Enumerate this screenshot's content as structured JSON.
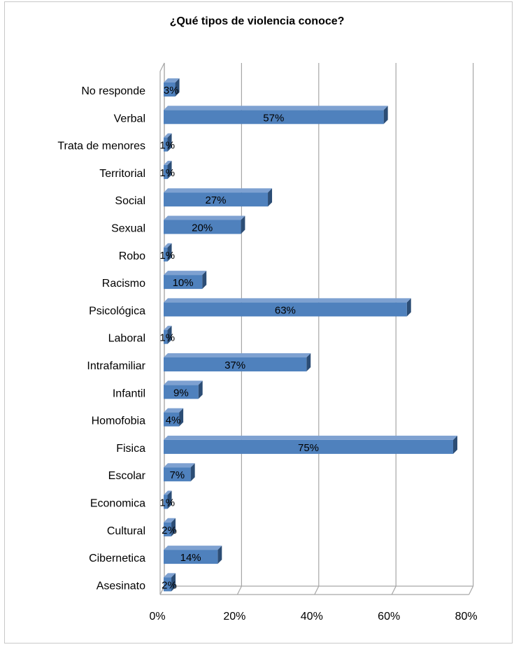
{
  "chart_data": {
    "type": "bar",
    "orientation": "horizontal",
    "style": "3d",
    "title": "¿Qué tipos de violencia conoce?",
    "categories": [
      "No responde",
      "Verbal",
      "Trata de menores",
      "Territorial",
      "Social",
      "Sexual",
      "Robo",
      "Racismo",
      "Psicológica",
      "Laboral",
      "Intrafamiliar",
      "Infantil",
      "Homofobia",
      "Fisica",
      "Escolar",
      "Economica",
      "Cultural",
      "Cibernetica",
      "Asesinato"
    ],
    "values": [
      3,
      57,
      1,
      1,
      27,
      20,
      1,
      10,
      63,
      1,
      37,
      9,
      4,
      75,
      7,
      1,
      2,
      14,
      2
    ],
    "value_labels": [
      "3%",
      "57%",
      "1%",
      "1%",
      "27%",
      "20%",
      "1%",
      "10%",
      "63%",
      "1%",
      "37%",
      "9%",
      "4%",
      "75%",
      "7%",
      "1%",
      "2%",
      "14%",
      "2%"
    ],
    "xlim": [
      0,
      80
    ],
    "xticks": [
      0,
      20,
      40,
      60,
      80
    ],
    "xtick_labels": [
      "0%",
      "20%",
      "40%",
      "60%",
      "80%"
    ],
    "grid": true,
    "legend": "none",
    "bar_color": "#4f81bd",
    "bar_top_color": "#7ea1d1",
    "bar_side_color": "#2c4d75"
  }
}
